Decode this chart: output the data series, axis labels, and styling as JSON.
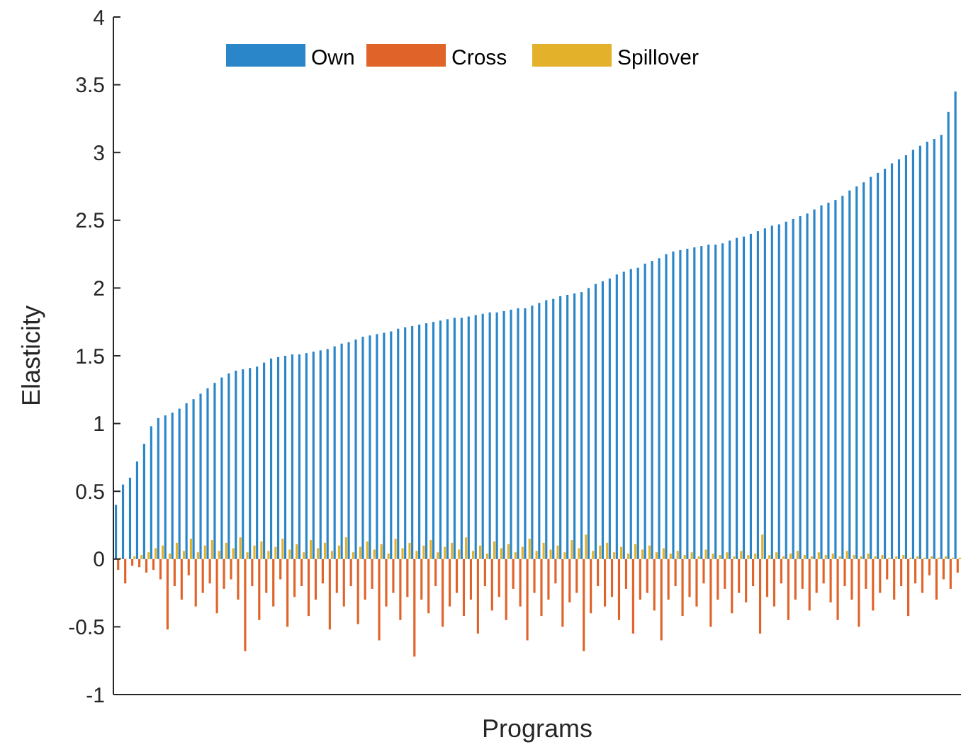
{
  "chart_data": {
    "type": "bar",
    "xlabel": "Programs",
    "ylabel": "Elasticity",
    "categories": [
      null,
      null,
      null,
      null,
      null,
      null,
      null,
      null,
      null,
      null,
      null,
      null,
      null,
      null,
      null,
      null,
      null,
      null,
      null,
      null,
      null,
      null,
      null,
      null,
      null,
      null,
      null,
      null,
      null,
      null,
      null,
      null,
      null,
      null,
      null,
      null,
      null,
      null,
      null,
      null,
      null,
      null,
      null,
      null,
      null,
      null,
      null,
      null,
      null,
      null,
      null,
      null,
      null,
      null,
      null,
      null,
      null,
      null,
      null,
      null,
      null,
      null,
      null,
      null,
      null,
      null,
      null,
      null,
      null,
      null,
      null,
      null,
      null,
      null,
      null,
      null,
      null,
      null,
      null,
      null,
      null,
      null,
      null,
      null,
      null,
      null,
      null,
      null,
      null,
      null,
      null,
      null,
      null,
      null,
      null,
      null,
      null,
      null,
      null,
      null,
      null,
      null,
      null,
      null,
      null,
      null,
      null,
      null,
      null,
      null,
      null,
      null,
      null,
      null,
      null,
      null,
      null,
      null,
      null,
      null
    ],
    "series": [
      {
        "name": "Own",
        "color": "#2a86c8",
        "values": [
          0.4,
          0.55,
          0.6,
          0.72,
          0.85,
          0.98,
          1.04,
          1.06,
          1.08,
          1.11,
          1.15,
          1.18,
          1.22,
          1.26,
          1.3,
          1.34,
          1.37,
          1.39,
          1.4,
          1.41,
          1.42,
          1.45,
          1.48,
          1.49,
          1.5,
          1.51,
          1.51,
          1.52,
          1.53,
          1.54,
          1.55,
          1.57,
          1.59,
          1.6,
          1.62,
          1.64,
          1.65,
          1.66,
          1.67,
          1.68,
          1.7,
          1.71,
          1.72,
          1.73,
          1.74,
          1.75,
          1.76,
          1.77,
          1.78,
          1.78,
          1.79,
          1.8,
          1.81,
          1.82,
          1.82,
          1.83,
          1.84,
          1.85,
          1.85,
          1.87,
          1.89,
          1.91,
          1.92,
          1.94,
          1.95,
          1.96,
          1.97,
          2.0,
          2.03,
          2.05,
          2.07,
          2.1,
          2.12,
          2.14,
          2.15,
          2.18,
          2.2,
          2.22,
          2.25,
          2.27,
          2.28,
          2.29,
          2.3,
          2.31,
          2.32,
          2.32,
          2.33,
          2.35,
          2.37,
          2.38,
          2.4,
          2.42,
          2.44,
          2.46,
          2.47,
          2.49,
          2.51,
          2.53,
          2.55,
          2.58,
          2.61,
          2.63,
          2.65,
          2.68,
          2.72,
          2.75,
          2.78,
          2.82,
          2.85,
          2.88,
          2.92,
          2.95,
          2.98,
          3.02,
          3.05,
          3.08,
          3.1,
          3.13,
          3.3,
          3.45
        ]
      },
      {
        "name": "Cross",
        "color": "#e0642a",
        "values": [
          -0.08,
          -0.18,
          -0.05,
          -0.06,
          -0.1,
          -0.08,
          -0.15,
          -0.52,
          -0.2,
          -0.3,
          -0.12,
          -0.35,
          -0.25,
          -0.18,
          -0.4,
          -0.22,
          -0.15,
          -0.3,
          -0.68,
          -0.2,
          -0.45,
          -0.25,
          -0.35,
          -0.15,
          -0.5,
          -0.28,
          -0.2,
          -0.42,
          -0.3,
          -0.18,
          -0.52,
          -0.25,
          -0.35,
          -0.2,
          -0.48,
          -0.3,
          -0.22,
          -0.6,
          -0.35,
          -0.25,
          -0.45,
          -0.28,
          -0.72,
          -0.3,
          -0.4,
          -0.2,
          -0.5,
          -0.35,
          -0.25,
          -0.42,
          -0.3,
          -0.55,
          -0.2,
          -0.38,
          -0.28,
          -0.45,
          -0.22,
          -0.35,
          -0.6,
          -0.25,
          -0.42,
          -0.3,
          -0.18,
          -0.5,
          -0.32,
          -0.25,
          -0.68,
          -0.4,
          -0.2,
          -0.35,
          -0.28,
          -0.45,
          -0.22,
          -0.55,
          -0.3,
          -0.25,
          -0.38,
          -0.6,
          -0.3,
          -0.2,
          -0.42,
          -0.28,
          -0.35,
          -0.18,
          -0.5,
          -0.3,
          -0.22,
          -0.4,
          -0.25,
          -0.32,
          -0.2,
          -0.55,
          -0.28,
          -0.35,
          -0.18,
          -0.45,
          -0.3,
          -0.22,
          -0.38,
          -0.25,
          -0.18,
          -0.32,
          -0.45,
          -0.2,
          -0.3,
          -0.5,
          -0.22,
          -0.38,
          -0.25,
          -0.15,
          -0.3,
          -0.2,
          -0.42,
          -0.18,
          -0.25,
          -0.12,
          -0.3,
          -0.15,
          -0.22,
          -0.1
        ]
      },
      {
        "name": "Spillover",
        "color": "#e3b12a",
        "values": [
          0.01,
          0.0,
          0.02,
          0.03,
          0.05,
          0.08,
          0.1,
          0.04,
          0.12,
          0.06,
          0.15,
          0.05,
          0.1,
          0.14,
          0.06,
          0.12,
          0.08,
          0.16,
          0.05,
          0.1,
          0.13,
          0.06,
          0.09,
          0.15,
          0.07,
          0.11,
          0.05,
          0.14,
          0.08,
          0.12,
          0.06,
          0.1,
          0.16,
          0.05,
          0.09,
          0.13,
          0.07,
          0.11,
          0.04,
          0.15,
          0.08,
          0.12,
          0.06,
          0.1,
          0.14,
          0.05,
          0.09,
          0.12,
          0.07,
          0.16,
          0.06,
          0.1,
          0.04,
          0.13,
          0.08,
          0.11,
          0.05,
          0.09,
          0.15,
          0.06,
          0.12,
          0.07,
          0.1,
          0.05,
          0.14,
          0.08,
          0.18,
          0.06,
          0.1,
          0.12,
          0.05,
          0.09,
          0.04,
          0.11,
          0.07,
          0.1,
          0.05,
          0.08,
          0.04,
          0.06,
          0.03,
          0.05,
          0.02,
          0.07,
          0.04,
          0.03,
          0.05,
          0.02,
          0.06,
          0.03,
          0.04,
          0.18,
          0.03,
          0.05,
          0.02,
          0.04,
          0.06,
          0.03,
          0.02,
          0.05,
          0.03,
          0.04,
          0.02,
          0.06,
          0.03,
          0.02,
          0.04,
          0.02,
          0.03,
          0.01,
          0.02,
          0.03,
          0.01,
          0.02,
          0.01,
          0.02,
          0.01,
          0.02,
          0.01,
          0.01
        ]
      }
    ],
    "ylim": [
      -1,
      4
    ],
    "yticks": [
      -1,
      -0.5,
      0,
      0.5,
      1,
      1.5,
      2,
      2.5,
      3,
      3.5,
      4
    ],
    "grid": false,
    "legend": "top"
  }
}
